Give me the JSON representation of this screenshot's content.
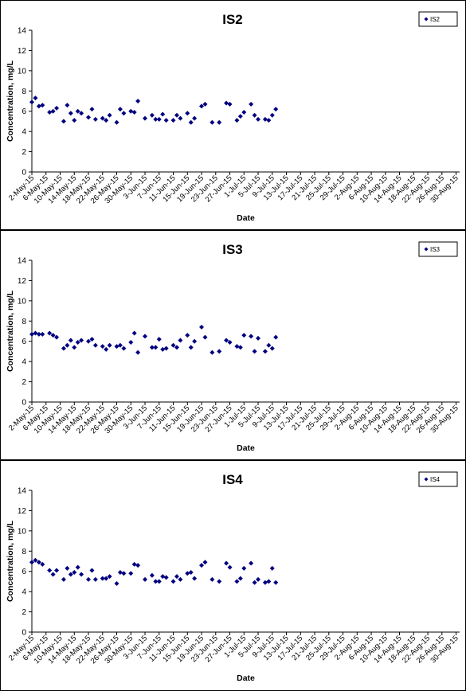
{
  "colors": {
    "marker": "#000080",
    "axis": "#000000",
    "background": "#ffffff"
  },
  "chart_data": [
    {
      "type": "scatter",
      "title": "IS2",
      "xlabel": "Date",
      "ylabel": "Concentration, mg/L",
      "ylim": [
        0,
        14
      ],
      "yticks": [
        "0",
        "2",
        "4",
        "6",
        "8",
        "10",
        "12",
        "14"
      ],
      "x_start": "2-May-15",
      "x_end": "31-Aug-15",
      "xtick_labels": [
        "2-May-15",
        "6-May-15",
        "10-May-15",
        "14-May-15",
        "18-May-15",
        "22-May-15",
        "26-May-15",
        "30-May-15",
        "3-Jun-15",
        "7-Jun-15",
        "11-Jun-15",
        "15-Jun-15",
        "19-Jun-15",
        "23-Jun-15",
        "27-Jun-15",
        "1-Jul-15",
        "5-Jul-15",
        "9-Jul-15",
        "13-Jul-15",
        "17-Jul-15",
        "21-Jul-15",
        "25-Jul-15",
        "29-Jul-15",
        "2-Aug-15",
        "6-Aug-15",
        "10-Aug-15",
        "14-Aug-15",
        "18-Aug-15",
        "22-Aug-15",
        "26-Aug-15",
        "30-Aug-15"
      ],
      "legend": "top-right",
      "grid": false,
      "series": [
        {
          "name": "IS2",
          "points": [
            {
              "x": "2-May-15",
              "y": 6.9
            },
            {
              "x": "3-May-15",
              "y": 7.3
            },
            {
              "x": "4-May-15",
              "y": 6.5
            },
            {
              "x": "5-May-15",
              "y": 6.6
            },
            {
              "x": "7-May-15",
              "y": 5.9
            },
            {
              "x": "8-May-15",
              "y": 6.0
            },
            {
              "x": "9-May-15",
              "y": 6.3
            },
            {
              "x": "11-May-15",
              "y": 5.0
            },
            {
              "x": "12-May-15",
              "y": 6.6
            },
            {
              "x": "13-May-15",
              "y": 5.8
            },
            {
              "x": "14-May-15",
              "y": 5.1
            },
            {
              "x": "15-May-15",
              "y": 6.0
            },
            {
              "x": "16-May-15",
              "y": 5.8
            },
            {
              "x": "18-May-15",
              "y": 5.4
            },
            {
              "x": "19-May-15",
              "y": 6.2
            },
            {
              "x": "20-May-15",
              "y": 5.2
            },
            {
              "x": "22-May-15",
              "y": 5.3
            },
            {
              "x": "23-May-15",
              "y": 5.1
            },
            {
              "x": "24-May-15",
              "y": 5.6
            },
            {
              "x": "26-May-15",
              "y": 4.9
            },
            {
              "x": "27-May-15",
              "y": 6.2
            },
            {
              "x": "28-May-15",
              "y": 5.8
            },
            {
              "x": "30-May-15",
              "y": 6.0
            },
            {
              "x": "31-May-15",
              "y": 5.9
            },
            {
              "x": "1-Jun-15",
              "y": 7.0
            },
            {
              "x": "3-Jun-15",
              "y": 5.3
            },
            {
              "x": "5-Jun-15",
              "y": 5.6
            },
            {
              "x": "6-Jun-15",
              "y": 5.2
            },
            {
              "x": "7-Jun-15",
              "y": 5.2
            },
            {
              "x": "8-Jun-15",
              "y": 5.7
            },
            {
              "x": "9-Jun-15",
              "y": 5.1
            },
            {
              "x": "11-Jun-15",
              "y": 5.1
            },
            {
              "x": "12-Jun-15",
              "y": 5.6
            },
            {
              "x": "13-Jun-15",
              "y": 5.3
            },
            {
              "x": "15-Jun-15",
              "y": 5.8
            },
            {
              "x": "16-Jun-15",
              "y": 4.9
            },
            {
              "x": "17-Jun-15",
              "y": 5.3
            },
            {
              "x": "19-Jun-15",
              "y": 6.5
            },
            {
              "x": "20-Jun-15",
              "y": 6.7
            },
            {
              "x": "22-Jun-15",
              "y": 4.9
            },
            {
              "x": "24-Jun-15",
              "y": 4.9
            },
            {
              "x": "26-Jun-15",
              "y": 6.8
            },
            {
              "x": "27-Jun-15",
              "y": 6.7
            },
            {
              "x": "29-Jun-15",
              "y": 5.1
            },
            {
              "x": "30-Jun-15",
              "y": 5.5
            },
            {
              "x": "1-Jul-15",
              "y": 5.9
            },
            {
              "x": "3-Jul-15",
              "y": 6.7
            },
            {
              "x": "4-Jul-15",
              "y": 5.6
            },
            {
              "x": "5-Jul-15",
              "y": 5.2
            },
            {
              "x": "7-Jul-15",
              "y": 5.2
            },
            {
              "x": "8-Jul-15",
              "y": 5.1
            },
            {
              "x": "9-Jul-15",
              "y": 5.6
            },
            {
              "x": "10-Jul-15",
              "y": 6.2
            }
          ]
        }
      ]
    },
    {
      "type": "scatter",
      "title": "IS3",
      "xlabel": "Date",
      "ylabel": "Concentration, mg/L",
      "ylim": [
        0,
        14
      ],
      "yticks": [
        "0",
        "2",
        "4",
        "6",
        "8",
        "10",
        "12",
        "14"
      ],
      "x_start": "2-May-15",
      "x_end": "31-Aug-15",
      "xtick_labels": [
        "2-May-15",
        "6-May-15",
        "10-May-15",
        "14-May-15",
        "18-May-15",
        "22-May-15",
        "26-May-15",
        "30-May-15",
        "3-Jun-15",
        "7-Jun-15",
        "11-Jun-15",
        "15-Jun-15",
        "19-Jun-15",
        "23-Jun-15",
        "27-Jun-15",
        "1-Jul-15",
        "5-Jul-15",
        "9-Jul-15",
        "13-Jul-15",
        "17-Jul-15",
        "21-Jul-15",
        "25-Jul-15",
        "29-Jul-15",
        "2-Aug-15",
        "6-Aug-15",
        "10-Aug-15",
        "14-Aug-15",
        "18-Aug-15",
        "22-Aug-15",
        "26-Aug-15",
        "30-Aug-15"
      ],
      "legend": "top-right",
      "grid": false,
      "series": [
        {
          "name": "IS3",
          "points": [
            {
              "x": "2-May-15",
              "y": 6.7
            },
            {
              "x": "3-May-15",
              "y": 6.8
            },
            {
              "x": "4-May-15",
              "y": 6.7
            },
            {
              "x": "5-May-15",
              "y": 6.7
            },
            {
              "x": "7-May-15",
              "y": 6.8
            },
            {
              "x": "8-May-15",
              "y": 6.6
            },
            {
              "x": "9-May-15",
              "y": 6.4
            },
            {
              "x": "11-May-15",
              "y": 5.3
            },
            {
              "x": "12-May-15",
              "y": 5.6
            },
            {
              "x": "13-May-15",
              "y": 6.1
            },
            {
              "x": "14-May-15",
              "y": 5.4
            },
            {
              "x": "15-May-15",
              "y": 5.9
            },
            {
              "x": "16-May-15",
              "y": 6.1
            },
            {
              "x": "18-May-15",
              "y": 6.0
            },
            {
              "x": "19-May-15",
              "y": 6.2
            },
            {
              "x": "20-May-15",
              "y": 5.6
            },
            {
              "x": "22-May-15",
              "y": 5.5
            },
            {
              "x": "23-May-15",
              "y": 5.2
            },
            {
              "x": "24-May-15",
              "y": 5.6
            },
            {
              "x": "26-May-15",
              "y": 5.5
            },
            {
              "x": "27-May-15",
              "y": 5.6
            },
            {
              "x": "28-May-15",
              "y": 5.3
            },
            {
              "x": "30-May-15",
              "y": 5.9
            },
            {
              "x": "31-May-15",
              "y": 6.8
            },
            {
              "x": "1-Jun-15",
              "y": 4.9
            },
            {
              "x": "3-Jun-15",
              "y": 6.5
            },
            {
              "x": "5-Jun-15",
              "y": 5.4
            },
            {
              "x": "6-Jun-15",
              "y": 5.4
            },
            {
              "x": "7-Jun-15",
              "y": 6.2
            },
            {
              "x": "8-Jun-15",
              "y": 5.2
            },
            {
              "x": "9-Jun-15",
              "y": 5.3
            },
            {
              "x": "11-Jun-15",
              "y": 5.6
            },
            {
              "x": "12-Jun-15",
              "y": 5.4
            },
            {
              "x": "13-Jun-15",
              "y": 6.1
            },
            {
              "x": "15-Jun-15",
              "y": 6.6
            },
            {
              "x": "16-Jun-15",
              "y": 5.4
            },
            {
              "x": "17-Jun-15",
              "y": 6.0
            },
            {
              "x": "19-Jun-15",
              "y": 7.4
            },
            {
              "x": "20-Jun-15",
              "y": 6.4
            },
            {
              "x": "22-Jun-15",
              "y": 4.9
            },
            {
              "x": "24-Jun-15",
              "y": 5.0
            },
            {
              "x": "26-Jun-15",
              "y": 6.1
            },
            {
              "x": "27-Jun-15",
              "y": 5.9
            },
            {
              "x": "29-Jun-15",
              "y": 5.5
            },
            {
              "x": "30-Jun-15",
              "y": 5.4
            },
            {
              "x": "1-Jul-15",
              "y": 6.6
            },
            {
              "x": "3-Jul-15",
              "y": 6.5
            },
            {
              "x": "4-Jul-15",
              "y": 5.0
            },
            {
              "x": "5-Jul-15",
              "y": 6.3
            },
            {
              "x": "7-Jul-15",
              "y": 5.0
            },
            {
              "x": "8-Jul-15",
              "y": 5.6
            },
            {
              "x": "9-Jul-15",
              "y": 5.3
            },
            {
              "x": "10-Jul-15",
              "y": 6.4
            }
          ]
        }
      ]
    },
    {
      "type": "scatter",
      "title": "IS4",
      "xlabel": "Date",
      "ylabel": "Concentration, mg/L",
      "ylim": [
        0,
        14
      ],
      "yticks": [
        "0",
        "2",
        "4",
        "6",
        "8",
        "10",
        "12",
        "14"
      ],
      "x_start": "2-May-15",
      "x_end": "31-Aug-15",
      "xtick_labels": [
        "2-May-15",
        "6-May-15",
        "10-May-15",
        "14-May-15",
        "18-May-15",
        "22-May-15",
        "26-May-15",
        "30-May-15",
        "3-Jun-15",
        "7-Jun-15",
        "11-Jun-15",
        "15-Jun-15",
        "19-Jun-15",
        "23-Jun-15",
        "27-Jun-15",
        "1-Jul-15",
        "5-Jul-15",
        "9-Jul-15",
        "13-Jul-15",
        "17-Jul-15",
        "21-Jul-15",
        "25-Jul-15",
        "29-Jul-15",
        "2-Aug-15",
        "6-Aug-15",
        "10-Aug-15",
        "14-Aug-15",
        "18-Aug-15",
        "22-Aug-15",
        "26-Aug-15",
        "30-Aug-15"
      ],
      "legend": "top-right",
      "grid": false,
      "series": [
        {
          "name": "IS4",
          "points": [
            {
              "x": "2-May-15",
              "y": 6.9
            },
            {
              "x": "3-May-15",
              "y": 7.1
            },
            {
              "x": "4-May-15",
              "y": 6.9
            },
            {
              "x": "5-May-15",
              "y": 6.7
            },
            {
              "x": "7-May-15",
              "y": 6.1
            },
            {
              "x": "8-May-15",
              "y": 5.7
            },
            {
              "x": "9-May-15",
              "y": 6.1
            },
            {
              "x": "11-May-15",
              "y": 5.2
            },
            {
              "x": "12-May-15",
              "y": 6.3
            },
            {
              "x": "13-May-15",
              "y": 5.7
            },
            {
              "x": "14-May-15",
              "y": 5.9
            },
            {
              "x": "15-May-15",
              "y": 6.4
            },
            {
              "x": "16-May-15",
              "y": 5.7
            },
            {
              "x": "18-May-15",
              "y": 5.2
            },
            {
              "x": "19-May-15",
              "y": 6.1
            },
            {
              "x": "20-May-15",
              "y": 5.2
            },
            {
              "x": "22-May-15",
              "y": 5.3
            },
            {
              "x": "23-May-15",
              "y": 5.3
            },
            {
              "x": "24-May-15",
              "y": 5.5
            },
            {
              "x": "26-May-15",
              "y": 4.8
            },
            {
              "x": "27-May-15",
              "y": 5.9
            },
            {
              "x": "28-May-15",
              "y": 5.8
            },
            {
              "x": "30-May-15",
              "y": 5.8
            },
            {
              "x": "31-May-15",
              "y": 6.7
            },
            {
              "x": "1-Jun-15",
              "y": 6.6
            },
            {
              "x": "3-Jun-15",
              "y": 5.2
            },
            {
              "x": "5-Jun-15",
              "y": 5.6
            },
            {
              "x": "6-Jun-15",
              "y": 5.0
            },
            {
              "x": "7-Jun-15",
              "y": 5.0
            },
            {
              "x": "8-Jun-15",
              "y": 5.5
            },
            {
              "x": "9-Jun-15",
              "y": 5.4
            },
            {
              "x": "11-Jun-15",
              "y": 5.0
            },
            {
              "x": "12-Jun-15",
              "y": 5.5
            },
            {
              "x": "13-Jun-15",
              "y": 5.2
            },
            {
              "x": "15-Jun-15",
              "y": 5.8
            },
            {
              "x": "16-Jun-15",
              "y": 5.9
            },
            {
              "x": "17-Jun-15",
              "y": 5.3
            },
            {
              "x": "19-Jun-15",
              "y": 6.6
            },
            {
              "x": "20-Jun-15",
              "y": 6.9
            },
            {
              "x": "22-Jun-15",
              "y": 5.2
            },
            {
              "x": "24-Jun-15",
              "y": 5.0
            },
            {
              "x": "26-Jun-15",
              "y": 6.8
            },
            {
              "x": "27-Jun-15",
              "y": 6.4
            },
            {
              "x": "29-Jun-15",
              "y": 5.0
            },
            {
              "x": "30-Jun-15",
              "y": 5.3
            },
            {
              "x": "1-Jul-15",
              "y": 6.3
            },
            {
              "x": "3-Jul-15",
              "y": 6.8
            },
            {
              "x": "4-Jul-15",
              "y": 4.9
            },
            {
              "x": "5-Jul-15",
              "y": 5.2
            },
            {
              "x": "7-Jul-15",
              "y": 4.9
            },
            {
              "x": "8-Jul-15",
              "y": 5.0
            },
            {
              "x": "9-Jul-15",
              "y": 6.3
            },
            {
              "x": "10-Jul-15",
              "y": 4.9
            }
          ]
        }
      ]
    }
  ]
}
